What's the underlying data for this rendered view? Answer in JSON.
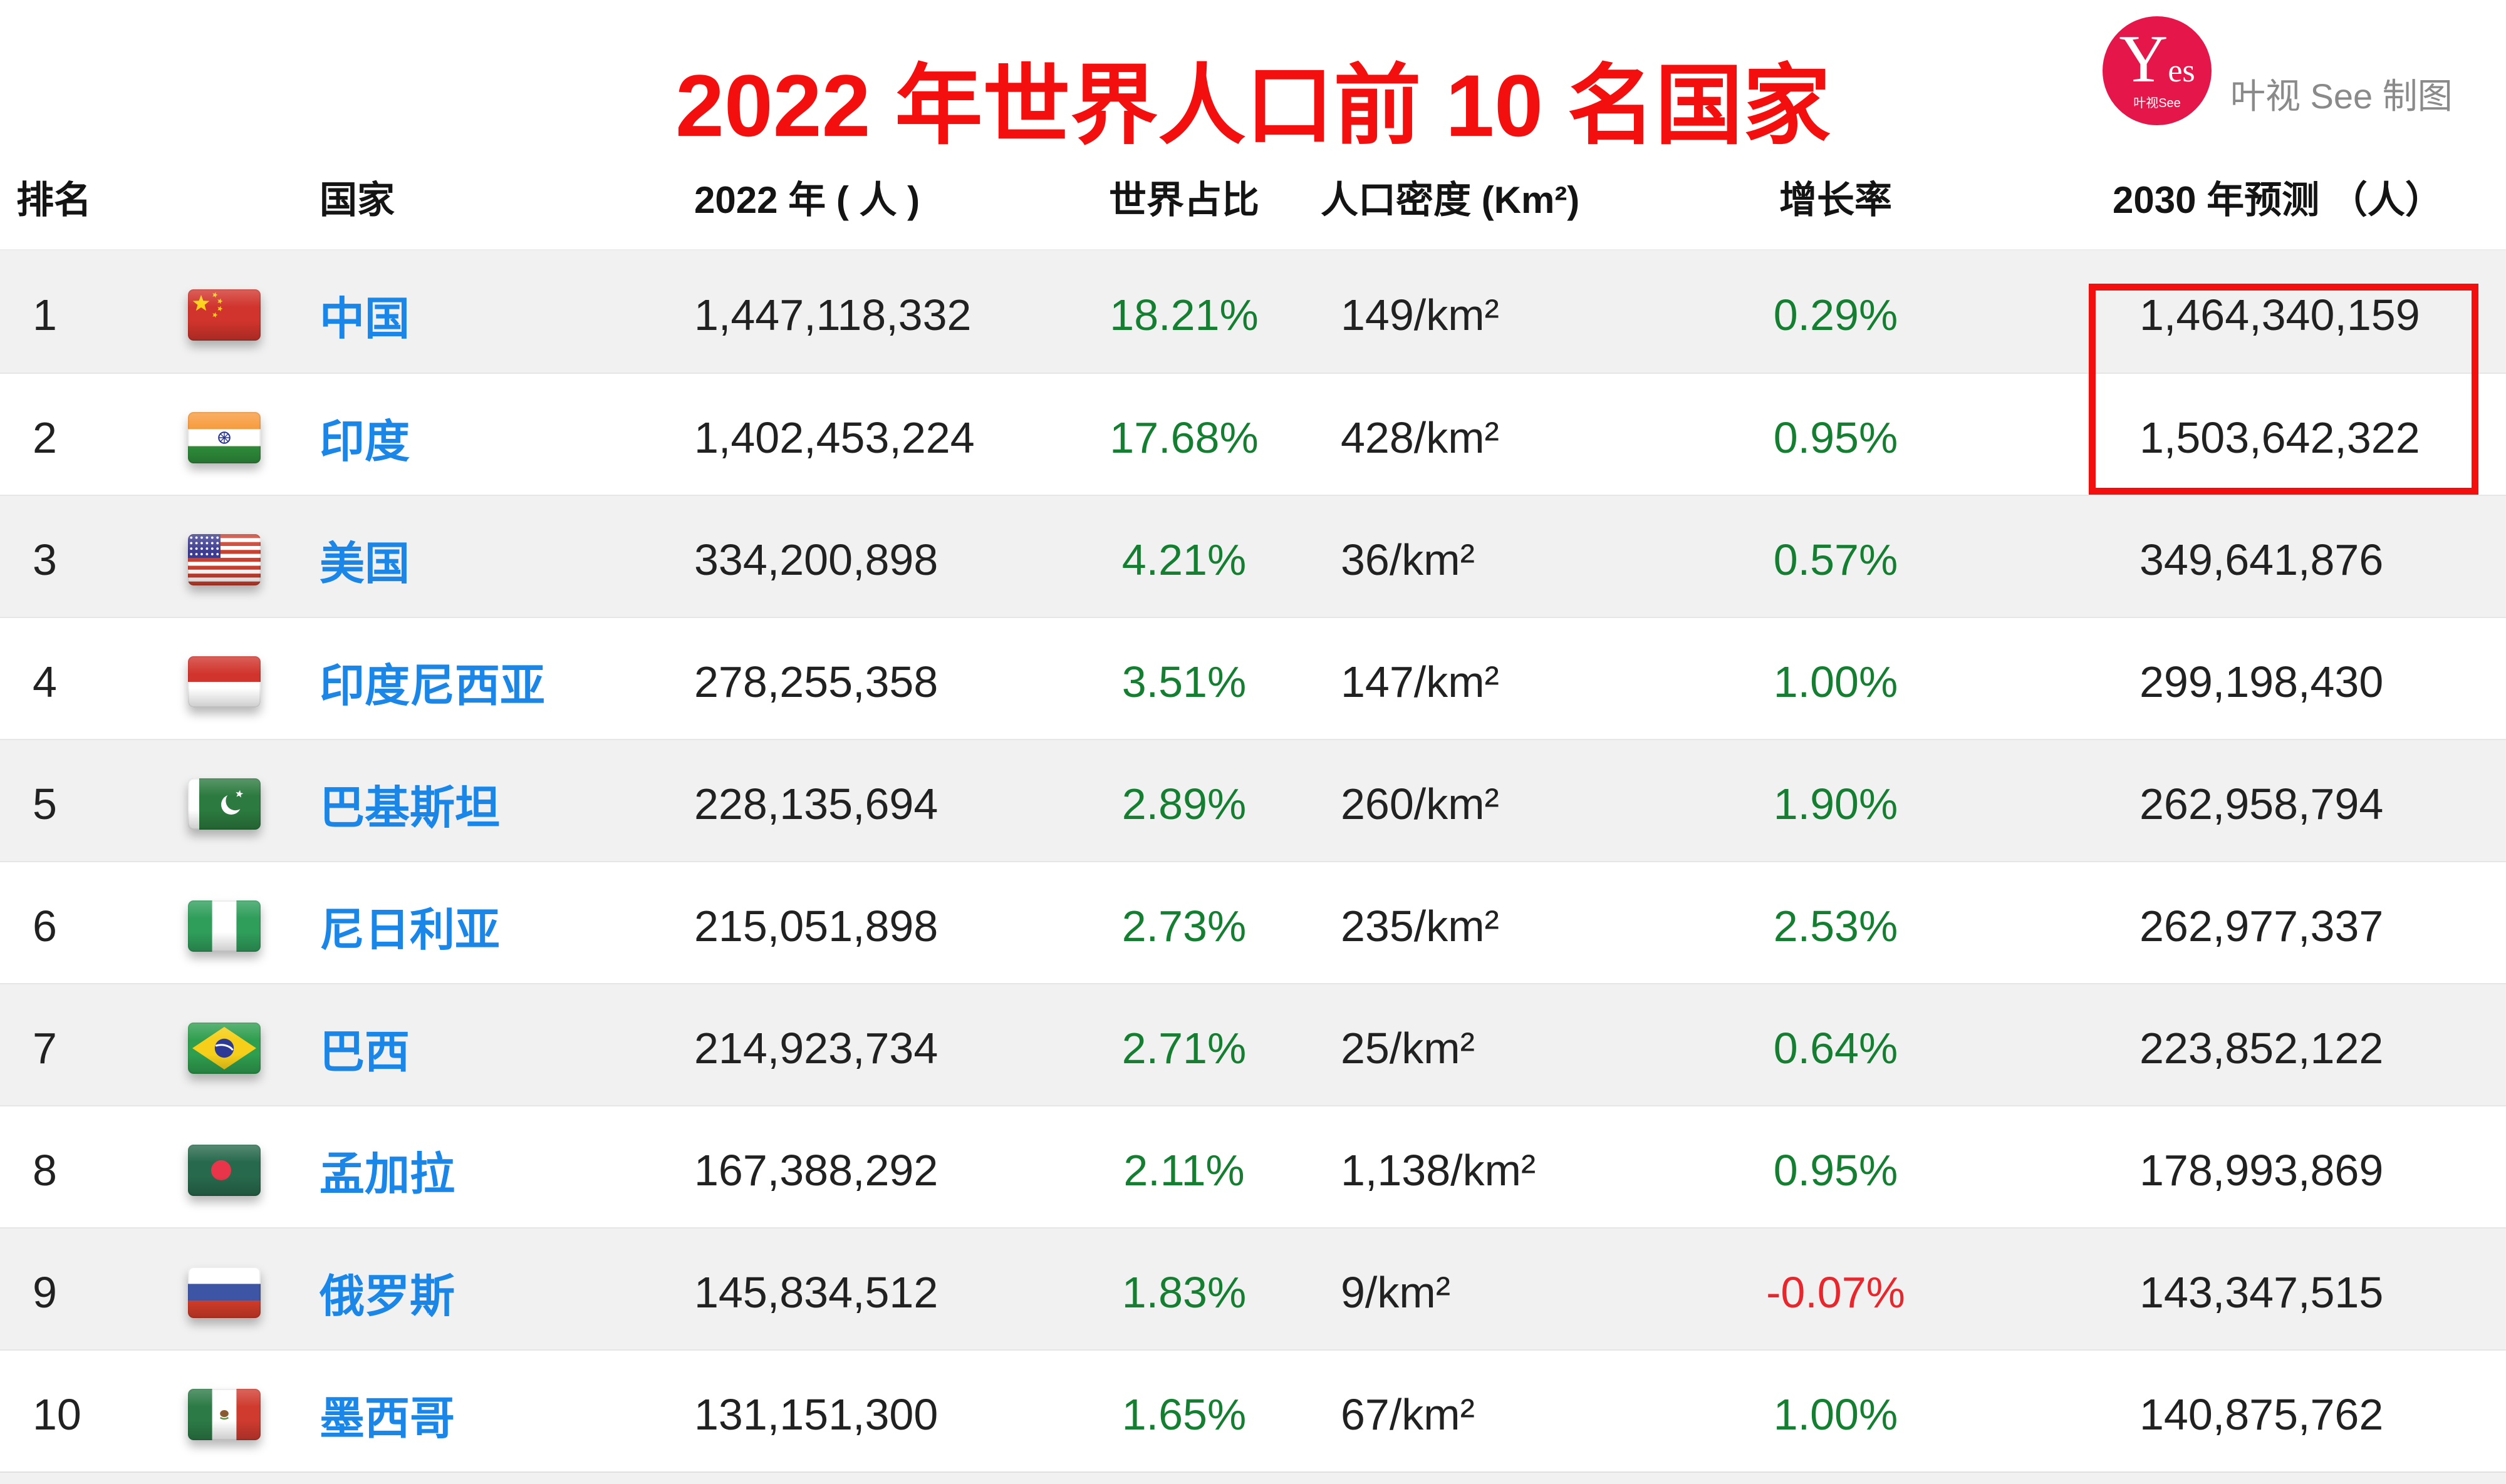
{
  "title": "2022 年世界人口前 10 名国家",
  "logo": {
    "badge_main": "Yes",
    "badge_sub": "叶视See",
    "caption": "叶视 See 制图"
  },
  "colors": {
    "title_red": "#f40f0f",
    "country_blue": "#1a86e8",
    "positive_green": "#157f31",
    "negative_red": "#e8262c",
    "logo_pink": "#e5164a",
    "highlight_border": "#f40f0f",
    "row_alt_bg": "#f1f1f1",
    "separator": "#e6e6e6",
    "caption_gray": "#8a8a8a"
  },
  "table": {
    "headers": {
      "rank": "排名",
      "country": "国家",
      "pop2022": "2022 年 ( 人 )",
      "share": "世界占比",
      "density": "人口密度 (Km²)",
      "growth": "增长率",
      "pred2030": "2030 年预测 （人）"
    },
    "rows": [
      {
        "rank": "1",
        "country": "中国",
        "flag": "cn",
        "flag_icon": "flag-china-icon",
        "pop2022": "1,447,118,332",
        "share": "18.21%",
        "density": "149/km²",
        "growth": "0.29%",
        "pred2030": "1,464,340,159"
      },
      {
        "rank": "2",
        "country": "印度",
        "flag": "in",
        "flag_icon": "flag-india-icon",
        "pop2022": "1,402,453,224",
        "share": "17.68%",
        "density": "428/km²",
        "growth": "0.95%",
        "pred2030": "1,503,642,322"
      },
      {
        "rank": "3",
        "country": "美国",
        "flag": "us",
        "flag_icon": "flag-usa-icon",
        "pop2022": "334,200,898",
        "share": "4.21%",
        "density": "36/km²",
        "growth": "0.57%",
        "pred2030": "349,641,876"
      },
      {
        "rank": "4",
        "country": "印度尼西亚",
        "flag": "id",
        "flag_icon": "flag-indonesia-icon",
        "pop2022": "278,255,358",
        "share": "3.51%",
        "density": "147/km²",
        "growth": "1.00%",
        "pred2030": "299,198,430"
      },
      {
        "rank": "5",
        "country": "巴基斯坦",
        "flag": "pk",
        "flag_icon": "flag-pakistan-icon",
        "pop2022": "228,135,694",
        "share": "2.89%",
        "density": "260/km²",
        "growth": "1.90%",
        "pred2030": "262,958,794"
      },
      {
        "rank": "6",
        "country": "尼日利亚",
        "flag": "ng",
        "flag_icon": "flag-nigeria-icon",
        "pop2022": "215,051,898",
        "share": "2.73%",
        "density": "235/km²",
        "growth": "2.53%",
        "pred2030": "262,977,337"
      },
      {
        "rank": "7",
        "country": "巴西",
        "flag": "br",
        "flag_icon": "flag-brazil-icon",
        "pop2022": "214,923,734",
        "share": "2.71%",
        "density": "25/km²",
        "growth": "0.64%",
        "pred2030": "223,852,122"
      },
      {
        "rank": "8",
        "country": "孟加拉",
        "flag": "bd",
        "flag_icon": "flag-bangladesh-icon",
        "pop2022": "167,388,292",
        "share": "2.11%",
        "density": "1,138/km²",
        "growth": "0.95%",
        "pred2030": "178,993,869"
      },
      {
        "rank": "9",
        "country": "俄罗斯",
        "flag": "ru",
        "flag_icon": "flag-russia-icon",
        "pop2022": "145,834,512",
        "share": "1.83%",
        "density": "9/km²",
        "growth": "-0.07%",
        "pred2030": "143,347,515"
      },
      {
        "rank": "10",
        "country": "墨西哥",
        "flag": "mx",
        "flag_icon": "flag-mexico-icon",
        "pop2022": "131,151,300",
        "share": "1.65%",
        "density": "67/km²",
        "growth": "1.00%",
        "pred2030": "140,875,762"
      }
    ],
    "highlight": {
      "column": "pred2030",
      "applies_to_ranks": [
        1,
        2
      ],
      "style": "red-box"
    }
  },
  "chart_data": {
    "type": "table",
    "title": "2022 年世界人口前 10 名国家",
    "columns": [
      "排名",
      "国家",
      "2022 年 ( 人 )",
      "世界占比",
      "人口密度 (Km²)",
      "增长率",
      "2030 年预测 （人）"
    ],
    "rows": [
      [
        1,
        "中国",
        "1,447,118,332",
        "18.21%",
        "149/km²",
        "0.29%",
        "1,464,340,159"
      ],
      [
        2,
        "印度",
        "1,402,453,224",
        "17.68%",
        "428/km²",
        "0.95%",
        "1,503,642,322"
      ],
      [
        3,
        "美国",
        "334,200,898",
        "4.21%",
        "36/km²",
        "0.57%",
        "349,641,876"
      ],
      [
        4,
        "印度尼西亚",
        "278,255,358",
        "3.51%",
        "147/km²",
        "1.00%",
        "299,198,430"
      ],
      [
        5,
        "巴基斯坦",
        "228,135,694",
        "2.89%",
        "260/km²",
        "1.90%",
        "262,958,794"
      ],
      [
        6,
        "尼日利亚",
        "215,051,898",
        "2.73%",
        "235/km²",
        "2.53%",
        "262,977,337"
      ],
      [
        7,
        "巴西",
        "214,923,734",
        "2.71%",
        "25/km²",
        "0.64%",
        "223,852,122"
      ],
      [
        8,
        "孟加拉",
        "167,388,292",
        "2.11%",
        "1,138/km²",
        "0.95%",
        "178,993,869"
      ],
      [
        9,
        "俄罗斯",
        "145,834,512",
        "1.83%",
        "9/km²",
        "-0.07%",
        "143,347,515"
      ],
      [
        10,
        "墨西哥",
        "131,151,300",
        "1.65%",
        "67/km²",
        "1.00%",
        "140,875,762"
      ]
    ],
    "annotations": [
      {
        "target": "2030 年预测 rows 1-2",
        "type": "red-outline-box"
      }
    ]
  }
}
